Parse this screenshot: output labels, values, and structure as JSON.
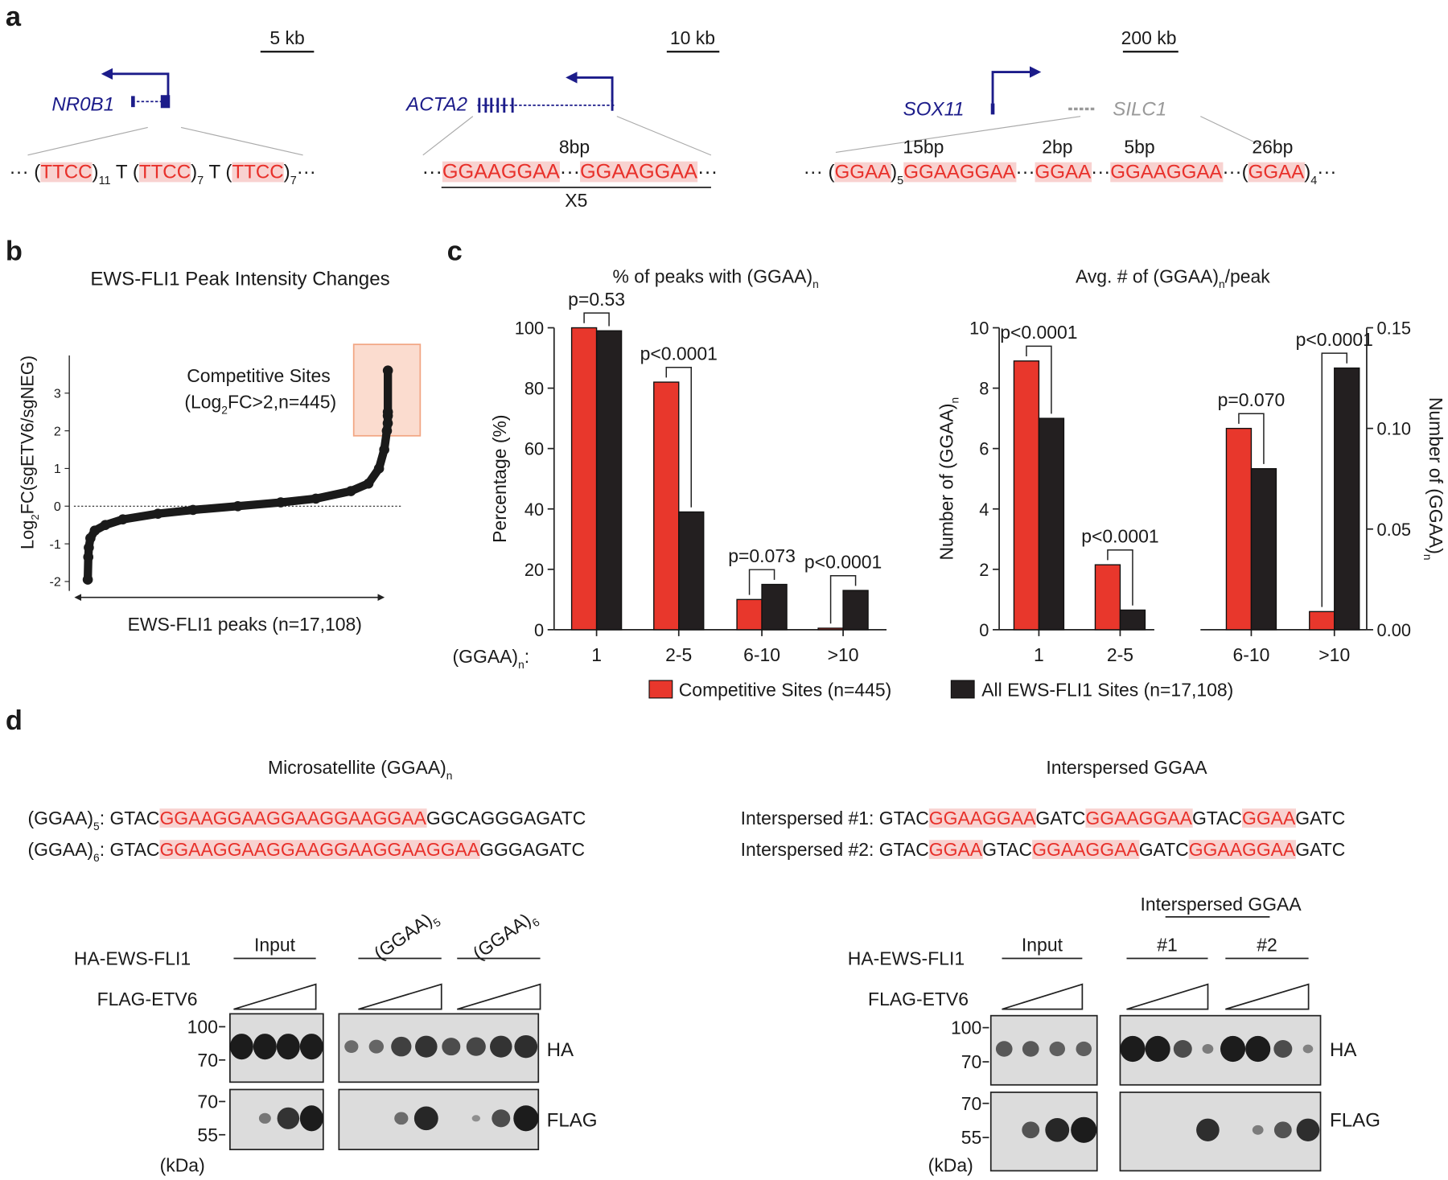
{
  "panel_labels": [
    "a",
    "b",
    "c",
    "d"
  ],
  "a": {
    "loci": [
      {
        "scale": "5 kb",
        "genes": [
          "NR0B1"
        ],
        "sequence": [
          "··· (",
          {
            "text": "TTCC",
            "red": true
          },
          ")",
          {
            "text": "11",
            "sub": true
          },
          " T (",
          {
            "text": "TTCC",
            "red": true
          },
          ")",
          {
            "text": "7",
            "sub": true
          },
          " T (",
          {
            "text": "TTCC",
            "red": true
          },
          ")",
          {
            "text": "7",
            "sub": true
          },
          "···"
        ],
        "spacers": []
      },
      {
        "scale": "10 kb",
        "genes": [
          "ACTA2"
        ],
        "sequence": [
          "···",
          {
            "text": "GGAAGGAA",
            "red": true
          },
          "···",
          {
            "text": "GGAAGGAA",
            "red": true
          },
          "···"
        ],
        "spacers": [
          "8bp"
        ],
        "repeat": "X5"
      },
      {
        "scale": "200 kb",
        "genes": [
          "SOX11",
          "SILC1"
        ],
        "sequence": [
          "··· (",
          {
            "text": "GGAA",
            "red": true
          },
          ")",
          {
            "text": "5",
            "sub": true
          },
          {
            "text": "GGAAGGAA",
            "red": true
          },
          "···",
          {
            "text": "GGAA",
            "red": true
          },
          "···",
          {
            "text": "GGAAGGAA",
            "red": true
          },
          "···(",
          {
            "text": "GGAA",
            "red": true
          },
          ")",
          {
            "text": "4",
            "sub": true
          },
          "···"
        ],
        "spacers": [
          "15bp",
          "2bp",
          "5bp",
          "26bp"
        ]
      }
    ]
  },
  "chart_data": [
    {
      "type": "line",
      "title": "EWS-FLI1 Peak Intensity Changes",
      "ylabel": [
        "Log",
        {
          "text": "2",
          "sub": true
        },
        "FC(sgETV6/sgNEG)"
      ],
      "xlabel": "EWS-FLI1 peaks (n=17,108)",
      "annotation": [
        "Competitive Sites",
        [
          "(Log",
          {
            "text": "2",
            "sub": true
          },
          "FC>2,n=445)"
        ]
      ],
      "x": [
        0,
        30,
        60,
        150,
        400,
        1000,
        2000,
        4000,
        6000,
        8554,
        11000,
        13000,
        15000,
        16000,
        16600,
        16900,
        17050,
        17100,
        17104,
        17106,
        17107
      ],
      "values": [
        -1.95,
        -1.35,
        -1.1,
        -0.85,
        -0.65,
        -0.5,
        -0.35,
        -0.2,
        -0.1,
        0,
        0.1,
        0.2,
        0.4,
        0.6,
        1.0,
        1.5,
        2.0,
        2.2,
        2.4,
        2.5,
        3.6
      ],
      "color": "#1a1a1a",
      "xlim": [
        0,
        17107
      ],
      "ylim": [
        -2.25,
        4
      ],
      "yticks": [
        -2,
        -1,
        0,
        1,
        2,
        3
      ],
      "hline": 0
    },
    {
      "type": "bar",
      "title": [
        "% of peaks with (GGAA)",
        {
          "text": "n",
          "sub": true
        }
      ],
      "ylabel": "Percentage (%)",
      "xlabel": [
        "(GGAA)",
        {
          "text": "n",
          "sub": true
        },
        ":"
      ],
      "categories": [
        "1",
        "2-5",
        "6-10",
        ">10"
      ],
      "series": [
        {
          "name": "Competitive Sites (n=445)",
          "color": "#e8372c",
          "values": [
            100,
            82,
            10,
            0.5
          ]
        },
        {
          "name": "All EWS-FLI1 Sites (n=17,108)",
          "color": "#231f20",
          "values": [
            99,
            39,
            15,
            13
          ]
        }
      ],
      "ylim": [
        0,
        100
      ],
      "yticks": [
        0,
        20,
        40,
        60,
        80,
        100
      ],
      "pvalues": [
        "p=0.53",
        "p<0.0001",
        "p=0.073",
        "p<0.0001"
      ]
    },
    {
      "type": "bar",
      "title": [
        "Avg. # of (GGAA)",
        {
          "text": "n",
          "sub": true
        },
        "/peak"
      ],
      "ylabel": [
        "Number of (GGAA)",
        {
          "text": "n",
          "sub": true
        }
      ],
      "y2label": [
        "Number of (GGAA)",
        {
          "text": "n",
          "sub": true
        }
      ],
      "categories": [
        "1",
        "2-5",
        "6-10",
        ">10"
      ],
      "series": [
        {
          "color": "#e8372c",
          "values": [
            8.9,
            2.15,
            null,
            null
          ]
        },
        {
          "color": "#231f20",
          "values": [
            7.0,
            0.65,
            null,
            null
          ]
        },
        {
          "color": "#e8372c",
          "axis": "y2",
          "values": [
            null,
            null,
            0.1,
            0.009
          ]
        },
        {
          "color": "#231f20",
          "axis": "y2",
          "values": [
            null,
            null,
            0.08,
            0.13
          ]
        }
      ],
      "ylim": [
        0,
        10
      ],
      "yticks": [
        0,
        2,
        4,
        6,
        8,
        10
      ],
      "y2lim": [
        0,
        0.15
      ],
      "y2ticks": [
        {
          "value": 0,
          "label": "0.00"
        },
        0.05,
        {
          "value": 0.1,
          "label": "0.10"
        },
        0.15
      ],
      "pvalues": [
        "p<0.0001",
        "p<0.0001",
        "p=0.070",
        "p<0.0001"
      ]
    }
  ],
  "d": {
    "left": {
      "title": [
        "Microsatellite (GGAA)",
        {
          "text": "n",
          "sub": true
        }
      ],
      "sequences": [
        [
          "(GGAA)",
          {
            "text": "5",
            "sub": true
          },
          ": GTAC",
          {
            "text": "GGAAGGAAGGAAGGAAGGAA",
            "red": true
          },
          "GGCAGGGAGATC"
        ],
        [
          "(GGAA)",
          {
            "text": "6",
            "sub": true
          },
          ": GTAC",
          {
            "text": "GGAAGGAAGGAAGGAAGGAAGGAA",
            "red": true
          },
          "GGGAGATC"
        ]
      ],
      "blot": {
        "rows": [
          "HA-EWS-FLI1",
          "FLAG-ETV6"
        ],
        "groups": [
          "Input",
          [
            "(GGAA)",
            {
              "text": "5",
              "sub": true
            }
          ],
          [
            "(GGAA)",
            {
              "text": "6",
              "sub": true
            }
          ]
        ],
        "markers": [
          "100",
          "70",
          "70",
          "55"
        ],
        "unit": "(kDa)",
        "antibodies": [
          "HA",
          "FLAG"
        ]
      }
    },
    "right": {
      "title": "Interspersed GGAA",
      "sequences": [
        [
          "Interspersed #1: GTAC",
          {
            "text": "GGAAGGAA",
            "red": true
          },
          "GATC",
          {
            "text": "GGAAGGAA",
            "red": true
          },
          "GTAC",
          {
            "text": "GGAA",
            "red": true
          },
          "GATC"
        ],
        [
          "Interspersed #2: GTAC",
          {
            "text": "GGAA",
            "red": true
          },
          "GTAC",
          {
            "text": "GGAAGGAA",
            "red": true
          },
          "GATC",
          {
            "text": "GGAAGGAA",
            "red": true
          },
          "GATC"
        ]
      ],
      "blot": {
        "header": "Interspersed GGAA",
        "rows": [
          "HA-EWS-FLI1",
          "FLAG-ETV6"
        ],
        "groups": [
          "Input",
          "#1",
          "#2"
        ],
        "markers": [
          "100",
          "70",
          "70",
          "55"
        ],
        "unit": "(kDa)",
        "antibodies": [
          "HA",
          "FLAG"
        ]
      }
    }
  }
}
